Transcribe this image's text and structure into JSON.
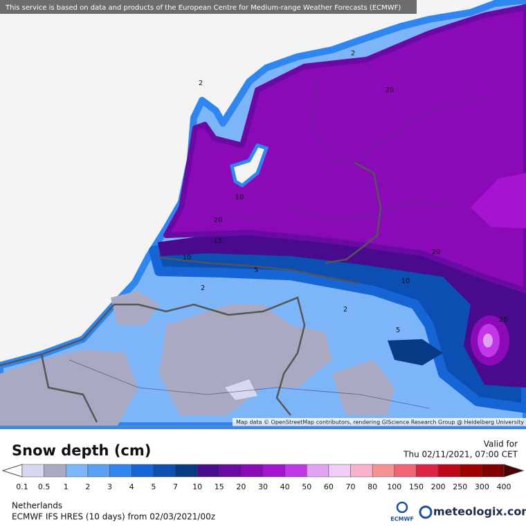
{
  "header": {
    "attribution": "This service is based on data and products of the European Centre for Medium-range Weather Forecasts (ECMWF)"
  },
  "map": {
    "attribution": "Map data © OpenStreetMap contributors, rendering GIScience Research Group @ Heidelberg University",
    "contour_labels": [
      "2",
      "10",
      "20",
      "15",
      "10",
      "5",
      "2",
      "2",
      "20",
      "10",
      "5",
      "2",
      "20",
      "20"
    ]
  },
  "legend": {
    "title": "Snow depth (cm)",
    "valid_label": "Valid for",
    "valid_time": "Thu 02/11/2021, 07:00 CET",
    "ticks": [
      0.1,
      0.5,
      1,
      2,
      3,
      4,
      5,
      7,
      10,
      15,
      20,
      30,
      40,
      50,
      60,
      70,
      80,
      100,
      150,
      200,
      250,
      300,
      400
    ],
    "under_color": "#ffffff",
    "colors": [
      "#d8d8f2",
      "#a9a9c4",
      "#7cb6f8",
      "#5aa0f5",
      "#2f86f0",
      "#1565d6",
      "#0b4fb2",
      "#073a84",
      "#4a0a8e",
      "#6a0aa2",
      "#8a0ab8",
      "#a614d2",
      "#c236ea",
      "#e2a2f2",
      "#f2ccf8",
      "#f8b2cc",
      "#f89292",
      "#f06474",
      "#e02444",
      "#c00818",
      "#a00000",
      "#820000"
    ],
    "over_color": "#4a0000"
  },
  "footer": {
    "region": "Netherlands",
    "model": "ECMWF IFS HRES (10 days) from 02/03/2021/00z",
    "logo": "ECMWF",
    "brand": "meteologix.com"
  }
}
